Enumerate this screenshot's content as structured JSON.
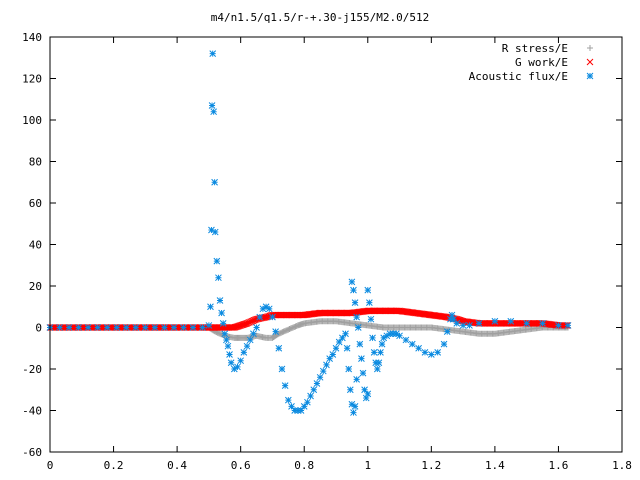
{
  "chart_data": {
    "type": "scatter",
    "title": "m4/n1.5/q1.5/r-+.30-j155/M2.0/512",
    "xlabel": "",
    "ylabel": "",
    "xlim": [
      0,
      1.8
    ],
    "ylim": [
      -60,
      140
    ],
    "xticks": [
      "0",
      "0.2",
      "0.4",
      "0.6",
      "0.8",
      "1",
      "1.2",
      "1.4",
      "1.6",
      "1.8"
    ],
    "yticks": [
      "-60",
      "-40",
      "-20",
      "0",
      "20",
      "40",
      "60",
      "80",
      "100",
      "120",
      "140"
    ],
    "legend_position": "top-right",
    "series": [
      {
        "name": "R stress/E",
        "marker": "plus",
        "color": "#a0a0a0",
        "points": [
          [
            0.0,
            0
          ],
          [
            0.1,
            0
          ],
          [
            0.2,
            0
          ],
          [
            0.3,
            0
          ],
          [
            0.4,
            0
          ],
          [
            0.48,
            0
          ],
          [
            0.5,
            0
          ],
          [
            0.52,
            -2
          ],
          [
            0.55,
            -4
          ],
          [
            0.58,
            -5
          ],
          [
            0.6,
            -5
          ],
          [
            0.62,
            -5
          ],
          [
            0.65,
            -4
          ],
          [
            0.68,
            -5
          ],
          [
            0.7,
            -5
          ],
          [
            0.72,
            -3
          ],
          [
            0.75,
            -1
          ],
          [
            0.78,
            1
          ],
          [
            0.8,
            2
          ],
          [
            0.85,
            3
          ],
          [
            0.9,
            3
          ],
          [
            0.95,
            2
          ],
          [
            1.0,
            1
          ],
          [
            1.05,
            0
          ],
          [
            1.1,
            0
          ],
          [
            1.15,
            0
          ],
          [
            1.2,
            0
          ],
          [
            1.25,
            -1
          ],
          [
            1.3,
            -2
          ],
          [
            1.35,
            -3
          ],
          [
            1.4,
            -3
          ],
          [
            1.45,
            -2
          ],
          [
            1.5,
            -1
          ],
          [
            1.55,
            0
          ],
          [
            1.6,
            0
          ],
          [
            1.63,
            0
          ]
        ]
      },
      {
        "name": "G work/E",
        "marker": "x",
        "color": "#ff0000",
        "points": [
          [
            0.0,
            0
          ],
          [
            0.1,
            0
          ],
          [
            0.2,
            0
          ],
          [
            0.3,
            0
          ],
          [
            0.4,
            0
          ],
          [
            0.48,
            0
          ],
          [
            0.52,
            0
          ],
          [
            0.55,
            0
          ],
          [
            0.58,
            0
          ],
          [
            0.6,
            1
          ],
          [
            0.62,
            2
          ],
          [
            0.65,
            4
          ],
          [
            0.68,
            5
          ],
          [
            0.7,
            6
          ],
          [
            0.75,
            6
          ],
          [
            0.8,
            6
          ],
          [
            0.85,
            7
          ],
          [
            0.9,
            7
          ],
          [
            0.95,
            7
          ],
          [
            1.0,
            8
          ],
          [
            1.05,
            8
          ],
          [
            1.1,
            8
          ],
          [
            1.15,
            7
          ],
          [
            1.2,
            6
          ],
          [
            1.25,
            5
          ],
          [
            1.28,
            4
          ],
          [
            1.3,
            3
          ],
          [
            1.35,
            2
          ],
          [
            1.4,
            2
          ],
          [
            1.45,
            2
          ],
          [
            1.5,
            2
          ],
          [
            1.55,
            2
          ],
          [
            1.6,
            1
          ],
          [
            1.63,
            1
          ]
        ]
      },
      {
        "name": "Acoustic flux/E",
        "marker": "star",
        "color": "#0a8ae0",
        "points": [
          [
            0.0,
            0
          ],
          [
            0.03,
            0
          ],
          [
            0.06,
            0
          ],
          [
            0.09,
            0
          ],
          [
            0.12,
            0
          ],
          [
            0.15,
            0
          ],
          [
            0.18,
            0
          ],
          [
            0.21,
            0
          ],
          [
            0.24,
            0
          ],
          [
            0.27,
            0
          ],
          [
            0.3,
            0
          ],
          [
            0.33,
            0
          ],
          [
            0.36,
            0
          ],
          [
            0.39,
            0
          ],
          [
            0.42,
            0
          ],
          [
            0.45,
            0
          ],
          [
            0.48,
            0
          ],
          [
            0.5,
            1
          ],
          [
            0.505,
            10
          ],
          [
            0.508,
            47
          ],
          [
            0.51,
            107
          ],
          [
            0.512,
            132
          ],
          [
            0.515,
            104
          ],
          [
            0.518,
            70
          ],
          [
            0.52,
            46
          ],
          [
            0.525,
            32
          ],
          [
            0.53,
            24
          ],
          [
            0.535,
            13
          ],
          [
            0.54,
            7
          ],
          [
            0.545,
            2
          ],
          [
            0.55,
            -3
          ],
          [
            0.555,
            -6
          ],
          [
            0.56,
            -9
          ],
          [
            0.565,
            -13
          ],
          [
            0.57,
            -17
          ],
          [
            0.58,
            -20
          ],
          [
            0.59,
            -19
          ],
          [
            0.6,
            -16
          ],
          [
            0.61,
            -12
          ],
          [
            0.62,
            -9
          ],
          [
            0.63,
            -6
          ],
          [
            0.64,
            -3
          ],
          [
            0.65,
            0
          ],
          [
            0.66,
            5
          ],
          [
            0.67,
            9
          ],
          [
            0.68,
            10
          ],
          [
            0.69,
            9
          ],
          [
            0.7,
            5
          ],
          [
            0.71,
            -2
          ],
          [
            0.72,
            -10
          ],
          [
            0.73,
            -20
          ],
          [
            0.74,
            -28
          ],
          [
            0.75,
            -35
          ],
          [
            0.76,
            -38
          ],
          [
            0.77,
            -40
          ],
          [
            0.78,
            -40
          ],
          [
            0.79,
            -40
          ],
          [
            0.8,
            -38
          ],
          [
            0.81,
            -36
          ],
          [
            0.82,
            -33
          ],
          [
            0.83,
            -30
          ],
          [
            0.84,
            -27
          ],
          [
            0.85,
            -24
          ],
          [
            0.86,
            -21
          ],
          [
            0.87,
            -18
          ],
          [
            0.88,
            -15
          ],
          [
            0.89,
            -13
          ],
          [
            0.9,
            -10
          ],
          [
            0.91,
            -7
          ],
          [
            0.92,
            -5
          ],
          [
            0.93,
            -3
          ],
          [
            0.935,
            -10
          ],
          [
            0.94,
            -20
          ],
          [
            0.945,
            -30
          ],
          [
            0.95,
            -37
          ],
          [
            0.955,
            -41
          ],
          [
            0.96,
            -38
          ],
          [
            0.965,
            -25
          ],
          [
            0.95,
            22
          ],
          [
            0.955,
            18
          ],
          [
            0.96,
            12
          ],
          [
            0.965,
            5
          ],
          [
            0.97,
            0
          ],
          [
            0.975,
            -8
          ],
          [
            0.98,
            -15
          ],
          [
            0.985,
            -22
          ],
          [
            0.99,
            -30
          ],
          [
            0.995,
            -34
          ],
          [
            1.0,
            -32
          ],
          [
            1.0,
            18
          ],
          [
            1.005,
            12
          ],
          [
            1.01,
            4
          ],
          [
            1.015,
            -5
          ],
          [
            1.02,
            -12
          ],
          [
            1.025,
            -17
          ],
          [
            1.03,
            -20
          ],
          [
            1.035,
            -17
          ],
          [
            1.04,
            -12
          ],
          [
            1.045,
            -8
          ],
          [
            1.05,
            -5
          ],
          [
            1.06,
            -4
          ],
          [
            1.07,
            -3
          ],
          [
            1.08,
            -3
          ],
          [
            1.09,
            -3
          ],
          [
            1.1,
            -4
          ],
          [
            1.12,
            -6
          ],
          [
            1.14,
            -8
          ],
          [
            1.16,
            -10
          ],
          [
            1.18,
            -12
          ],
          [
            1.2,
            -13
          ],
          [
            1.22,
            -12
          ],
          [
            1.24,
            -8
          ],
          [
            1.25,
            -2
          ],
          [
            1.26,
            4
          ],
          [
            1.265,
            6
          ],
          [
            1.27,
            4
          ],
          [
            1.28,
            2
          ],
          [
            1.3,
            1
          ],
          [
            1.32,
            1
          ],
          [
            1.35,
            2
          ],
          [
            1.4,
            3
          ],
          [
            1.45,
            3
          ],
          [
            1.5,
            2
          ],
          [
            1.55,
            2
          ],
          [
            1.6,
            1
          ],
          [
            1.63,
            1
          ]
        ]
      }
    ]
  }
}
